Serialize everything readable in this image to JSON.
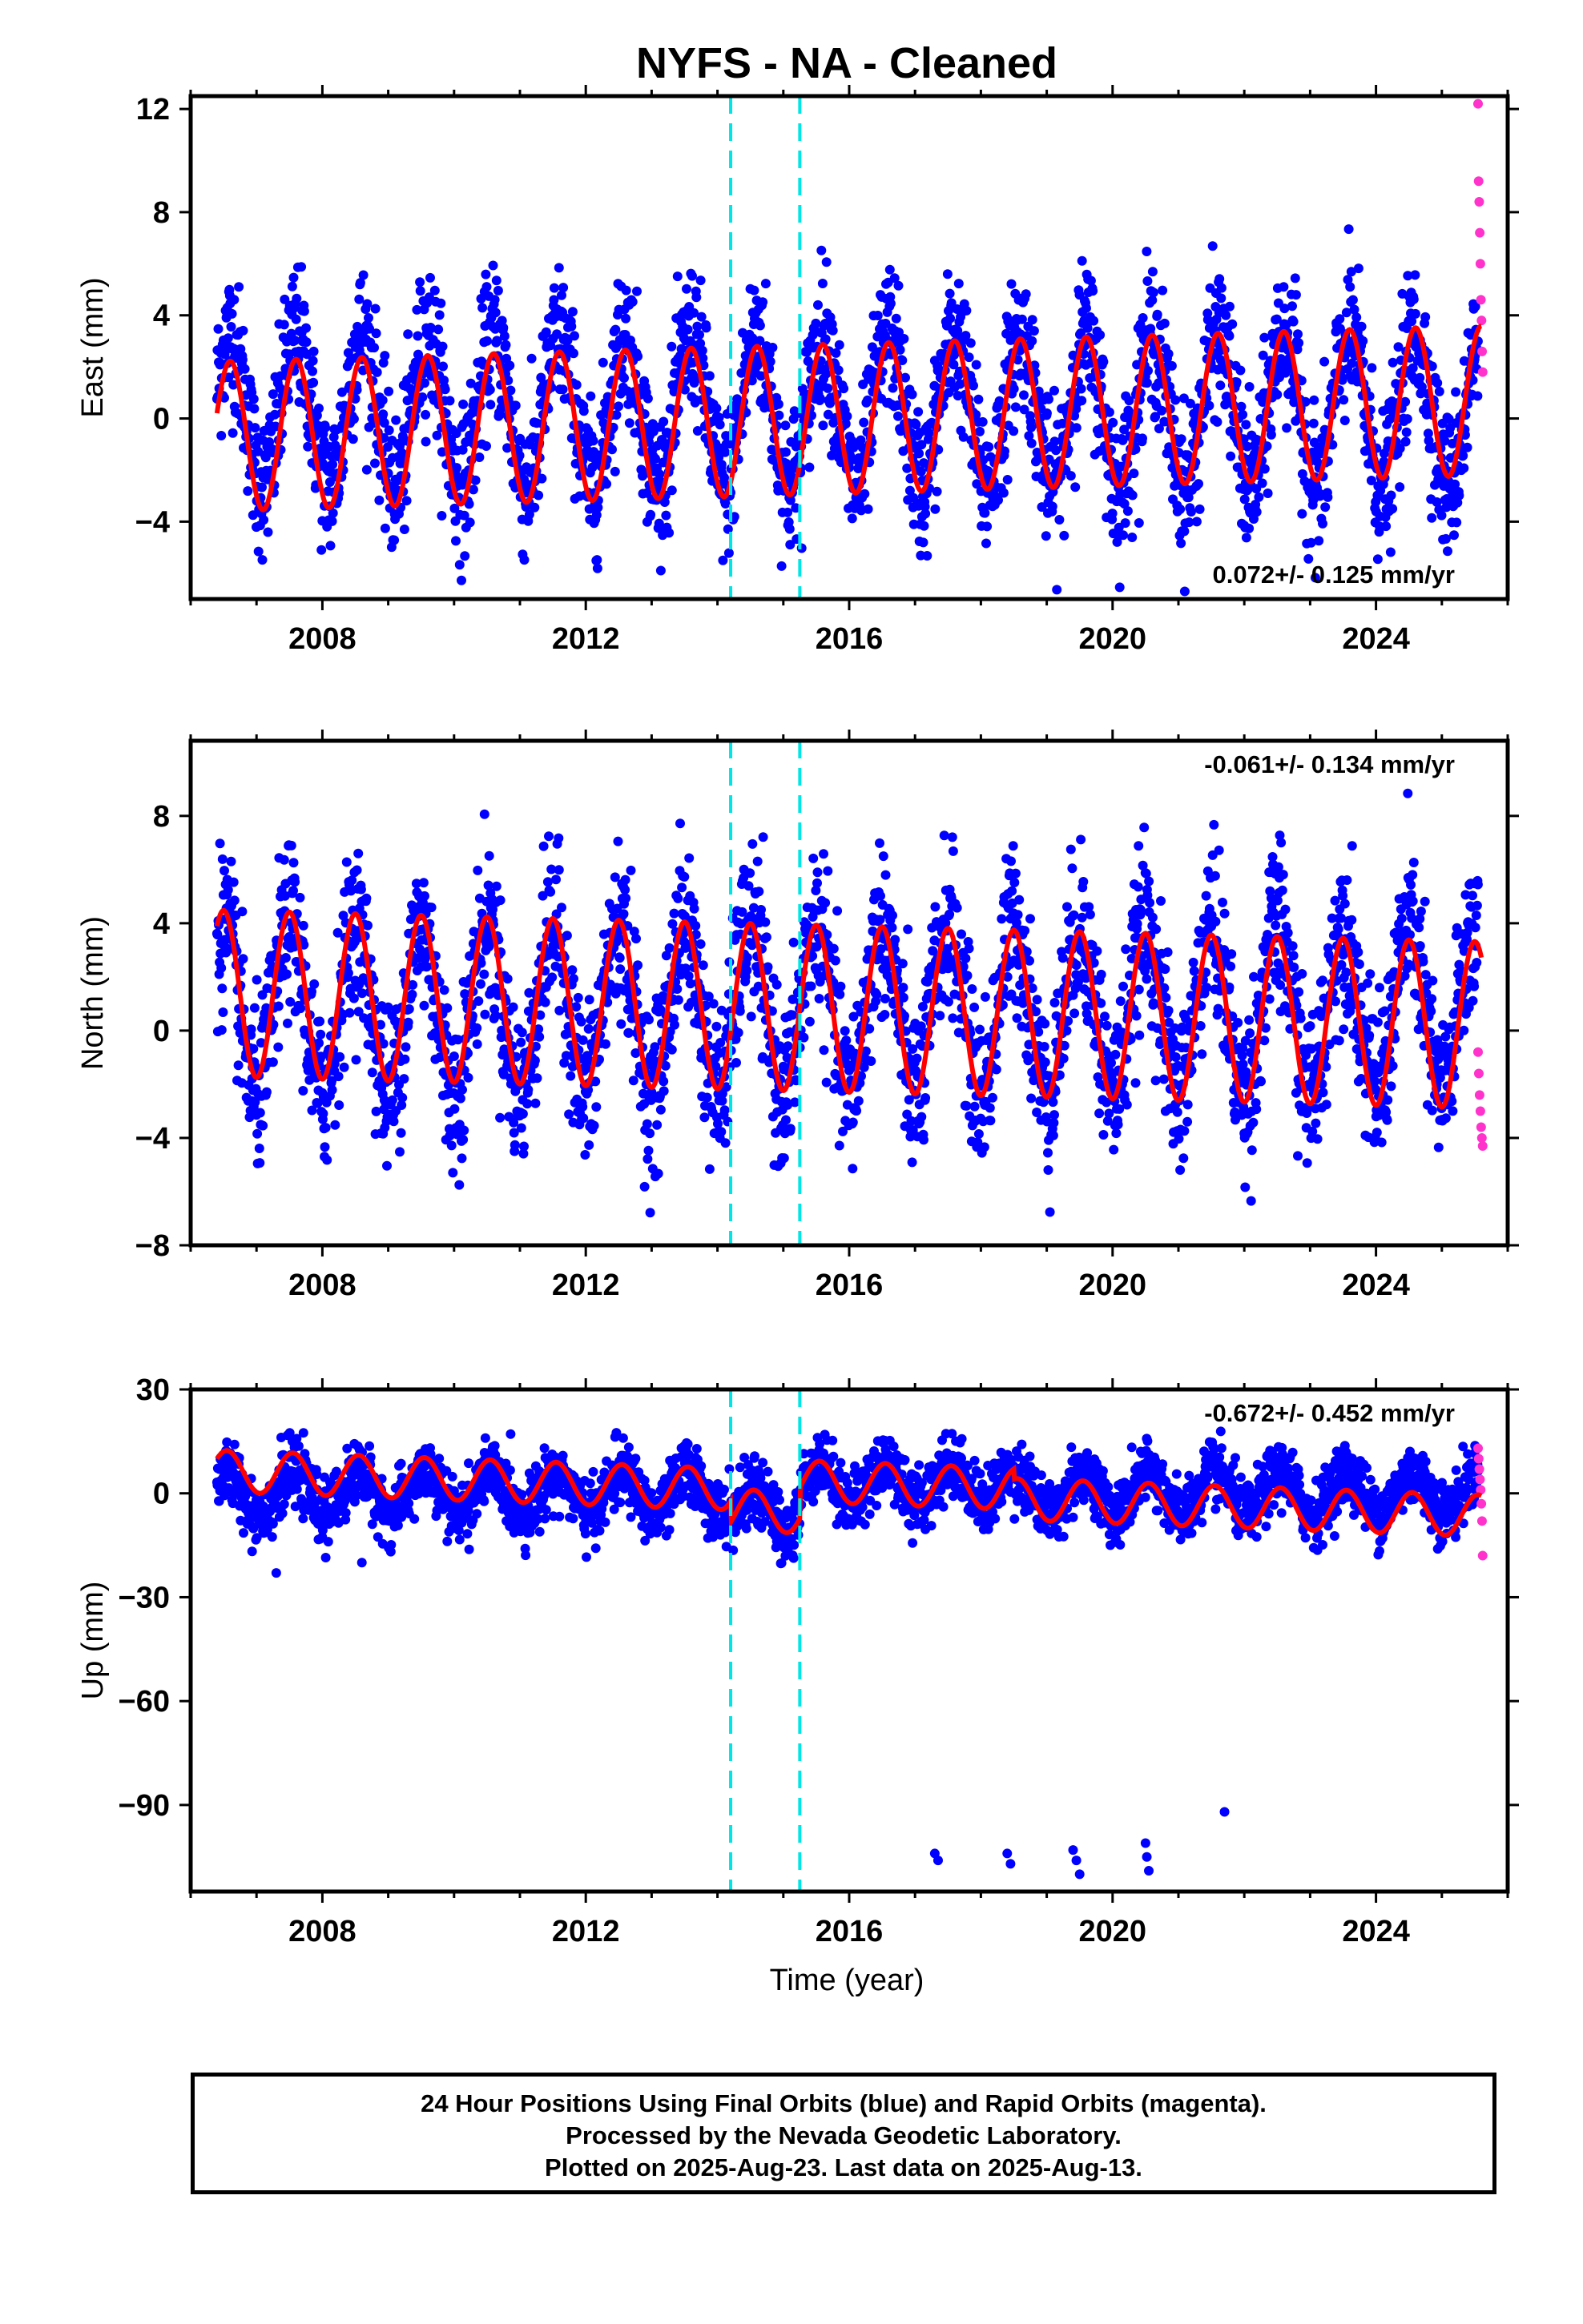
{
  "chart_data": {
    "type": "scatter",
    "title": "NYFS  - NA - Cleaned",
    "xlabel": "Time (year)",
    "xlim": [
      2006.0,
      2026.0
    ],
    "xticks": [
      "2008",
      "2012",
      "2016",
      "2020",
      "2024"
    ],
    "xtick_values": [
      2008,
      2012,
      2016,
      2020,
      2024
    ],
    "offset_lines_year": [
      2014.2,
      2015.25
    ],
    "colors": {
      "final_orbits": "#0000ff",
      "rapid_orbits": "#ff33cc",
      "model_fit": "#ff0000",
      "offset_lines": "#00e5e5"
    },
    "panels": [
      {
        "id": "east",
        "ylabel": "East (mm)",
        "ylim": [
          -7.0,
          12.5
        ],
        "yticks": [
          "−4",
          "0",
          "4",
          "8",
          "12"
        ],
        "ytick_values": [
          -4,
          0,
          4,
          8,
          12
        ],
        "rate_text": "0.072+/- 0.125 mm/yr",
        "rate_position": "bottom-right",
        "series": [
          {
            "name": "Final Orbits",
            "color": "#0000ff",
            "mean": 0.3,
            "amplitude": 2.9,
            "phase_peak": 0.6,
            "scatter": 1.4,
            "range": [
              2006.4,
              2025.55
            ]
          },
          {
            "name": "Rapid Orbits",
            "color": "#ff33cc",
            "range": [
              2025.55,
              2025.62
            ],
            "values": [
              12.2,
              9.2,
              8.4,
              7.2,
              6.0,
              4.6,
              3.8,
              2.6,
              1.8
            ]
          },
          {
            "name": "Model",
            "color": "#ff0000",
            "mean": 0.0,
            "amplitude": 2.9,
            "trend": 0.072
          }
        ]
      },
      {
        "id": "north",
        "ylabel": "North (mm)",
        "ylim": [
          -8.0,
          10.8
        ],
        "yticks": [
          "−8",
          "−4",
          "0",
          "4",
          "8"
        ],
        "ytick_values": [
          -8,
          -4,
          0,
          4,
          8
        ],
        "rate_text": "-0.061+/- 0.134 mm/yr",
        "rate_position": "top-right",
        "series": [
          {
            "name": "Final Orbits",
            "color": "#0000ff",
            "mean": 0.8,
            "amplitude": 3.1,
            "phase_peak": 0.5,
            "scatter": 1.5,
            "range": [
              2006.4,
              2025.55
            ]
          },
          {
            "name": "Rapid Orbits",
            "color": "#ff33cc",
            "range": [
              2025.55,
              2025.62
            ],
            "values": [
              -0.8,
              -1.6,
              -2.4,
              -3.0,
              -3.6,
              -4.0,
              -4.3
            ]
          },
          {
            "name": "Model",
            "color": "#ff0000",
            "mean": 0.8,
            "amplitude": 3.1,
            "trend": -0.061
          }
        ]
      },
      {
        "id": "up",
        "ylabel": "Up (mm)",
        "ylim": [
          -115.0,
          30.0
        ],
        "yticks": [
          "30",
          "0",
          "−30",
          "−60",
          "−90"
        ],
        "ytick_values": [
          30,
          0,
          -30,
          -60,
          -90
        ],
        "rate_text": "-0.672+/- 0.452 mm/yr",
        "rate_position": "top-right",
        "series": [
          {
            "name": "Final Orbits",
            "color": "#0000ff",
            "mean": 0.0,
            "amplitude": 6.0,
            "phase_peak": 0.55,
            "scatter": 4.5,
            "range": [
              2006.4,
              2025.55
            ]
          },
          {
            "name": "Rapid Orbits",
            "color": "#ff33cc",
            "range": [
              2025.55,
              2025.62
            ],
            "values": [
              13,
              10,
              7,
              4,
              1,
              -3,
              -8,
              -18
            ]
          },
          {
            "name": "Model",
            "color": "#ff0000",
            "mean": 0.0,
            "amplitude": 6.0,
            "trend": -0.672
          }
        ],
        "outliers": [
          {
            "x": 2007.3,
            "y": -23
          },
          {
            "x": 2008.6,
            "y": -20
          },
          {
            "x": 2017.3,
            "y": -104
          },
          {
            "x": 2017.35,
            "y": -106
          },
          {
            "x": 2018.4,
            "y": -104
          },
          {
            "x": 2018.45,
            "y": -107
          },
          {
            "x": 2019.4,
            "y": -103
          },
          {
            "x": 2019.45,
            "y": -106
          },
          {
            "x": 2019.5,
            "y": -110
          },
          {
            "x": 2020.5,
            "y": -101
          },
          {
            "x": 2020.52,
            "y": -105
          },
          {
            "x": 2020.55,
            "y": -109
          },
          {
            "x": 2021.7,
            "y": -92
          }
        ]
      }
    ]
  },
  "footer": {
    "line1": "24 Hour Positions Using Final Orbits (blue) and Rapid Orbits (magenta).",
    "line2": "Processed by the Nevada Geodetic Laboratory.",
    "line3": "Plotted on 2025-Aug-23. Last data on 2025-Aug-13."
  }
}
